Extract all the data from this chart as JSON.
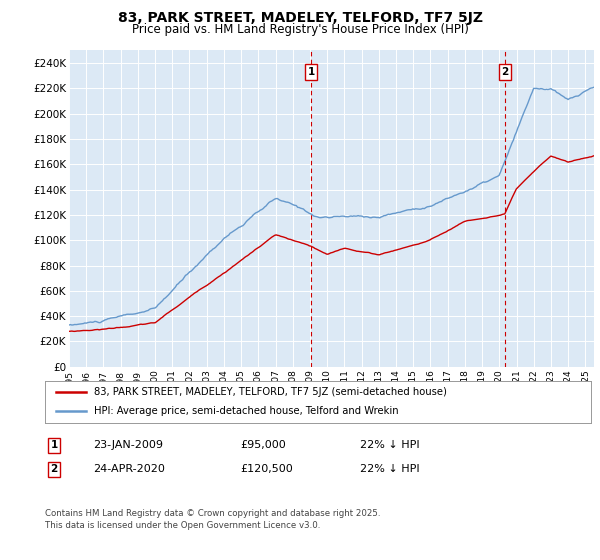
{
  "title": "83, PARK STREET, MADELEY, TELFORD, TF7 5JZ",
  "subtitle": "Price paid vs. HM Land Registry's House Price Index (HPI)",
  "ylabel_ticks": [
    "£0",
    "£20K",
    "£40K",
    "£60K",
    "£80K",
    "£100K",
    "£120K",
    "£140K",
    "£160K",
    "£180K",
    "£200K",
    "£220K",
    "£240K"
  ],
  "ytick_values": [
    0,
    20000,
    40000,
    60000,
    80000,
    100000,
    120000,
    140000,
    160000,
    180000,
    200000,
    220000,
    240000
  ],
  "ylim": [
    0,
    250000
  ],
  "sale1": {
    "date": "23-JAN-2009",
    "price": 95000,
    "label": "1",
    "year": 2009.07
  },
  "sale2": {
    "date": "24-APR-2020",
    "price": 120500,
    "label": "2",
    "year": 2020.32
  },
  "sale1_pct": "22% ↓ HPI",
  "sale2_pct": "22% ↓ HPI",
  "legend_line1": "83, PARK STREET, MADELEY, TELFORD, TF7 5JZ (semi-detached house)",
  "legend_line2": "HPI: Average price, semi-detached house, Telford and Wrekin",
  "footer": "Contains HM Land Registry data © Crown copyright and database right 2025.\nThis data is licensed under the Open Government Licence v3.0.",
  "line_color_red": "#cc0000",
  "line_color_blue": "#6699cc",
  "background_color": "#dce9f5",
  "grid_color": "#ffffff",
  "dashed_color": "#cc0000",
  "box_color": "#cc0000",
  "xlim_start": 1995.0,
  "xlim_end": 2025.5
}
